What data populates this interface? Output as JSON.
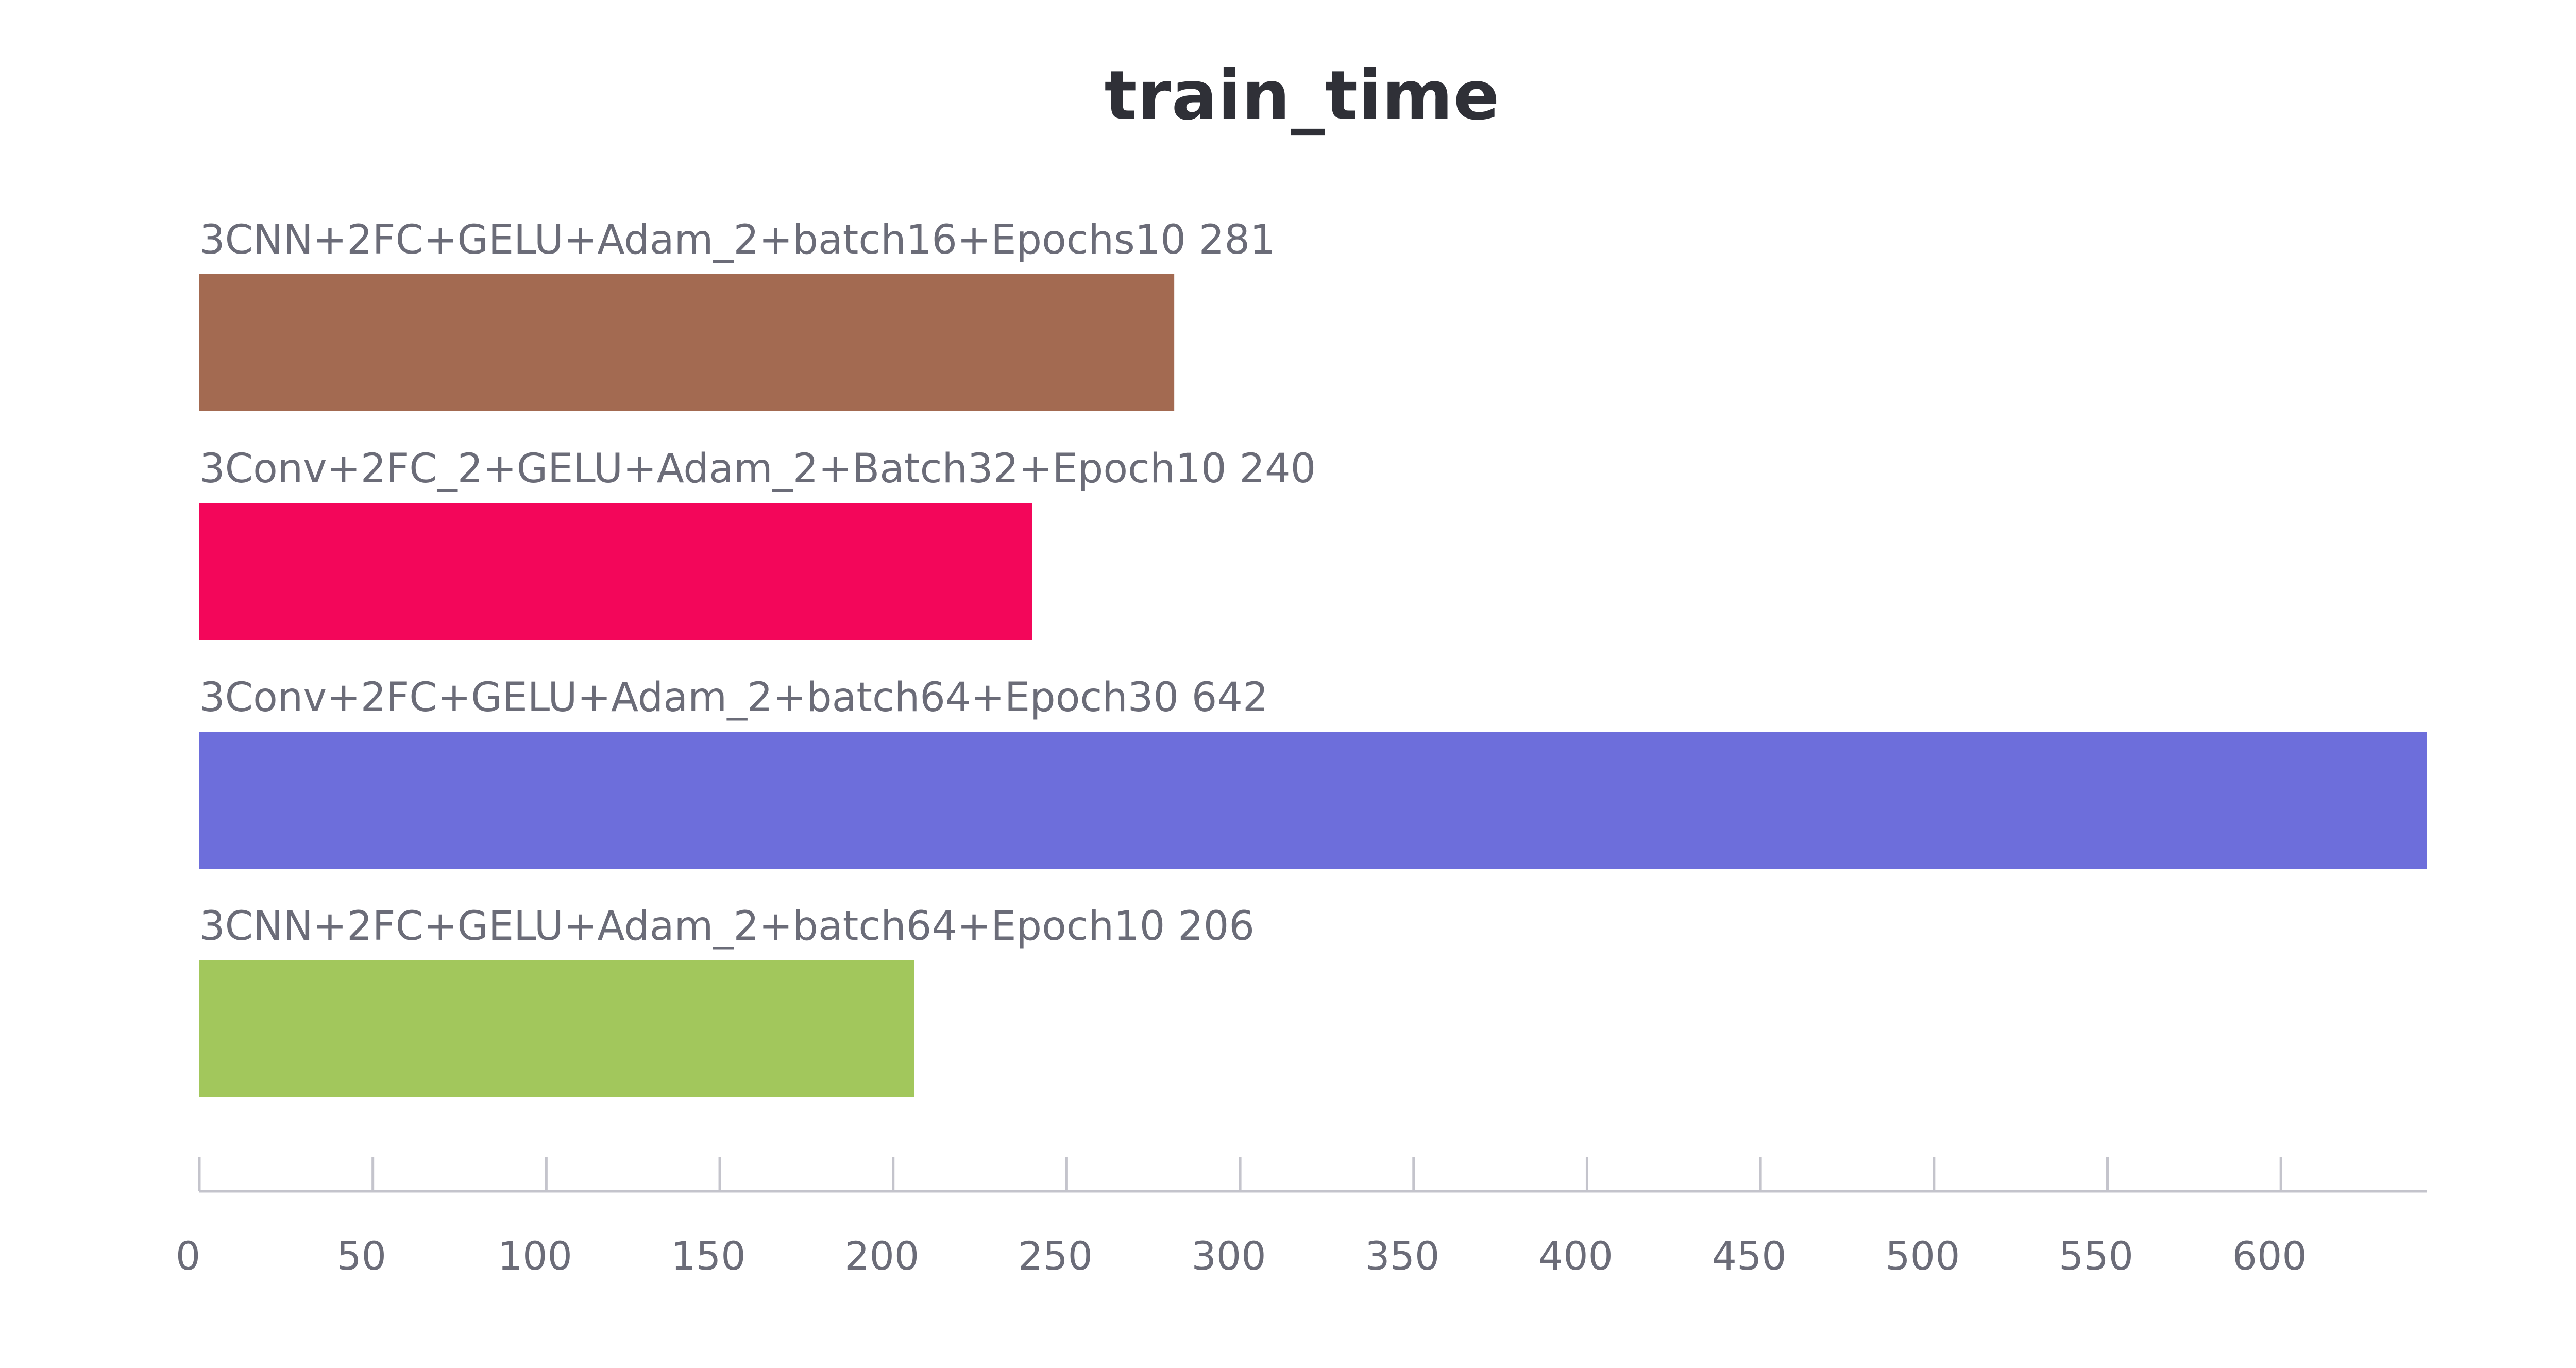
{
  "chart_data": {
    "type": "bar",
    "orientation": "horizontal",
    "title": "train_time",
    "xlabel": "",
    "ylabel": "",
    "xlim": [
      0,
      642
    ],
    "x_ticks": [
      0,
      50,
      100,
      150,
      200,
      250,
      300,
      350,
      400,
      450,
      500,
      550,
      600
    ],
    "grid": false,
    "legend": "none",
    "bars": [
      {
        "label": "3CNN+2FC+GELU+Adam_2+batch16+Epochs10",
        "value": 281,
        "value_text": "281",
        "color": "#a36a51"
      },
      {
        "label": "3Conv+2FC_2+GELU+Adam_2+Batch32+Epoch10",
        "value": 240,
        "value_text": "240",
        "color": "#f3065a"
      },
      {
        "label": "3Conv+2FC+GELU+Adam_2+batch64+Epoch30",
        "value": 642,
        "value_text": "642",
        "color": "#6d6edb"
      },
      {
        "label": "3CNN+2FC+GELU+Adam_2+batch64+Epoch10",
        "value": 206,
        "value_text": "206",
        "color": "#a2c75c"
      }
    ],
    "text_color": "#6b6c78",
    "axis_color": "#c4c4cc"
  }
}
